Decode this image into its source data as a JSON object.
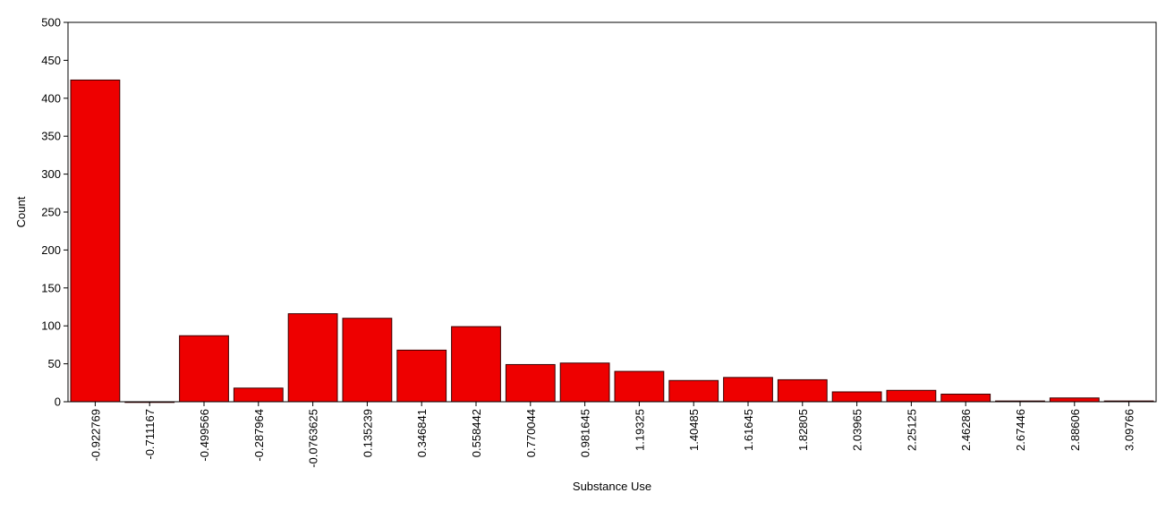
{
  "chart_data": {
    "type": "bar",
    "title": "",
    "xlabel": "Substance Use",
    "ylabel": "Count",
    "ylim": [
      0,
      500
    ],
    "yticks": [
      0,
      50,
      100,
      150,
      200,
      250,
      300,
      350,
      400,
      450,
      500
    ],
    "grid": false,
    "legend": "none",
    "bar_color": "#ee0000",
    "bar_edge_color": "#3a0000",
    "categories": [
      "-0.922769",
      "-0.711167",
      "-0.499566",
      "-0.287964",
      "-0.0763625",
      "0.135239",
      "0.346841",
      "0.558442",
      "0.770044",
      "0.981645",
      "1.19325",
      "1.40485",
      "1.61645",
      "1.82805",
      "2.03965",
      "2.25125",
      "2.46286",
      "2.67446",
      "2.88606",
      "3.09766"
    ],
    "values": [
      424,
      0,
      87,
      18,
      116,
      110,
      68,
      99,
      49,
      51,
      40,
      28,
      32,
      29,
      13,
      15,
      10,
      1,
      5,
      1
    ]
  }
}
